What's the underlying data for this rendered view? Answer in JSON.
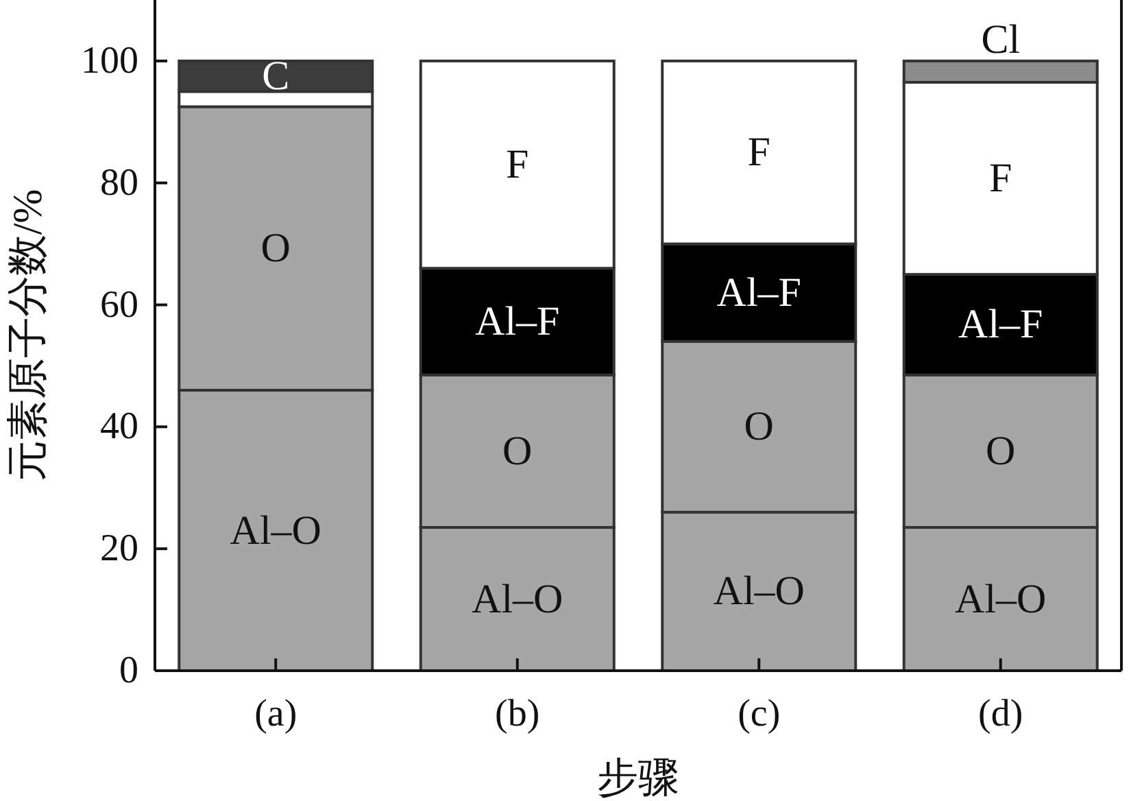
{
  "chart_data": {
    "type": "bar",
    "stacked": true,
    "xlabel": "步骤",
    "ylabel": "元素原子分数/%",
    "categories": [
      "(a)",
      "(b)",
      "(c)",
      "(d)"
    ],
    "ylim": [
      0,
      110
    ],
    "yticks": [
      0,
      20,
      40,
      60,
      80,
      100
    ],
    "series": [
      {
        "name": "Al–O",
        "color": "#a6a6a6",
        "values": [
          46,
          23.5,
          26,
          23.5
        ]
      },
      {
        "name": "O",
        "color": "#a6a6a6",
        "values": [
          46.5,
          25,
          28,
          25
        ]
      },
      {
        "name": "Al–F",
        "color": "#000000",
        "values": [
          null,
          17.5,
          16,
          16.5
        ]
      },
      {
        "name": "F",
        "color": "#ffffff",
        "values": [
          2.5,
          34,
          30,
          31.5
        ]
      },
      {
        "name": "C",
        "color": "#3c3c3c",
        "values": [
          5,
          null,
          null,
          null
        ]
      },
      {
        "name": "Cl",
        "color": "#8c8c8c",
        "values": [
          null,
          null,
          null,
          3.5
        ]
      }
    ]
  }
}
